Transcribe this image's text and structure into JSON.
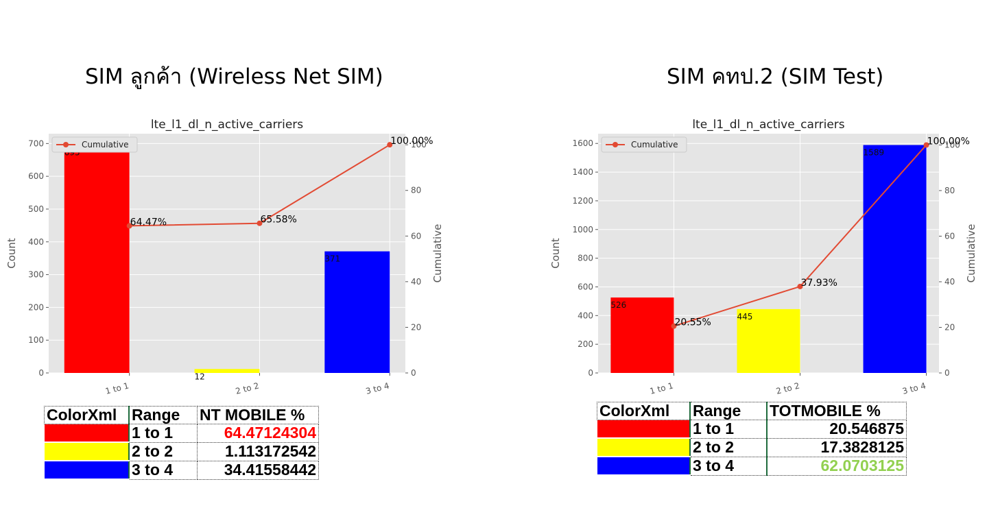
{
  "panels": [
    {
      "heading": "SIM ลูกค้า (Wireless Net SIM)",
      "chart": {
        "title": "lte_l1_dl_n_active_carriers",
        "ylabel": "Count",
        "y2label": "Cumulative",
        "legend": "Cumulative",
        "yticks": [
          "0",
          "100",
          "200",
          "300",
          "400",
          "500",
          "600",
          "700"
        ],
        "y2ticks": [
          "0",
          "20",
          "40",
          "60",
          "80",
          "100"
        ]
      },
      "table": {
        "headers": [
          "ColorXml",
          "Range",
          "NT MOBILE %"
        ],
        "rows": [
          {
            "range": "1 to 1",
            "value": "64.47124304",
            "value_color": "#ff0000",
            "swatch": "#ff0000"
          },
          {
            "range": "2 to 2",
            "value": "1.113172542",
            "value_color": "#000000",
            "swatch": "#ffff00"
          },
          {
            "range": "3 to 4",
            "value": "34.41558442",
            "value_color": "#000000",
            "swatch": "#0000ff"
          }
        ]
      }
    },
    {
      "heading": "SIM คทป.2 (SIM Test)",
      "chart": {
        "title": "lte_l1_dl_n_active_carriers",
        "ylabel": "Count",
        "y2label": "Cumulative",
        "legend": "Cumulative",
        "yticks": [
          "0",
          "200",
          "400",
          "600",
          "800",
          "1000",
          "1200",
          "1400",
          "1600"
        ],
        "y2ticks": [
          "0",
          "20",
          "40",
          "60",
          "80",
          "100"
        ]
      },
      "table": {
        "headers": [
          "ColorXml",
          "Range",
          "TOTMOBILE %"
        ],
        "rows": [
          {
            "range": "1 to 1",
            "value": "20.546875",
            "value_color": "#000000",
            "swatch": "#ff0000"
          },
          {
            "range": "2 to 2",
            "value": "17.3828125",
            "value_color": "#000000",
            "swatch": "#ffff00"
          },
          {
            "range": "3 to 4",
            "value": "62.0703125",
            "value_color": "#92d050",
            "swatch": "#0000ff"
          }
        ]
      }
    }
  ],
  "chart_data": [
    {
      "type": "bar",
      "title": "lte_l1_dl_n_active_carriers",
      "categories": [
        "1 to 1",
        "2 to 2",
        "3 to 4"
      ],
      "values": [
        695,
        12,
        371
      ],
      "bar_labels": [
        "695",
        "12",
        "371"
      ],
      "bar_colors": [
        "#ff0000",
        "#ffff00",
        "#0000ff"
      ],
      "cumulative": [
        64.47,
        65.58,
        100.0
      ],
      "cumulative_labels": [
        "64.47%",
        "65.58%",
        "100.00%"
      ],
      "cumulative_color": "#e24a33",
      "xlabel": "",
      "ylabel": "Count",
      "y2label": "Cumulative",
      "ylim": [
        0,
        730
      ],
      "y2lim": [
        0,
        104.86
      ],
      "grid": true,
      "legend": "top-left"
    },
    {
      "type": "bar",
      "title": "lte_l1_dl_n_active_carriers",
      "categories": [
        "1 to 1",
        "2 to 2",
        "3 to 4"
      ],
      "values": [
        526,
        445,
        1589
      ],
      "bar_labels": [
        "526",
        "445",
        "1589"
      ],
      "bar_colors": [
        "#ff0000",
        "#ffff00",
        "#0000ff"
      ],
      "cumulative": [
        20.55,
        37.93,
        100.0
      ],
      "cumulative_labels": [
        "20.55%",
        "37.93%",
        "100.00%"
      ],
      "cumulative_color": "#e24a33",
      "xlabel": "",
      "ylabel": "Count",
      "y2label": "Cumulative",
      "ylim": [
        0,
        1668
      ],
      "y2lim": [
        0,
        104.95
      ],
      "grid": true,
      "legend": "top-left"
    }
  ]
}
